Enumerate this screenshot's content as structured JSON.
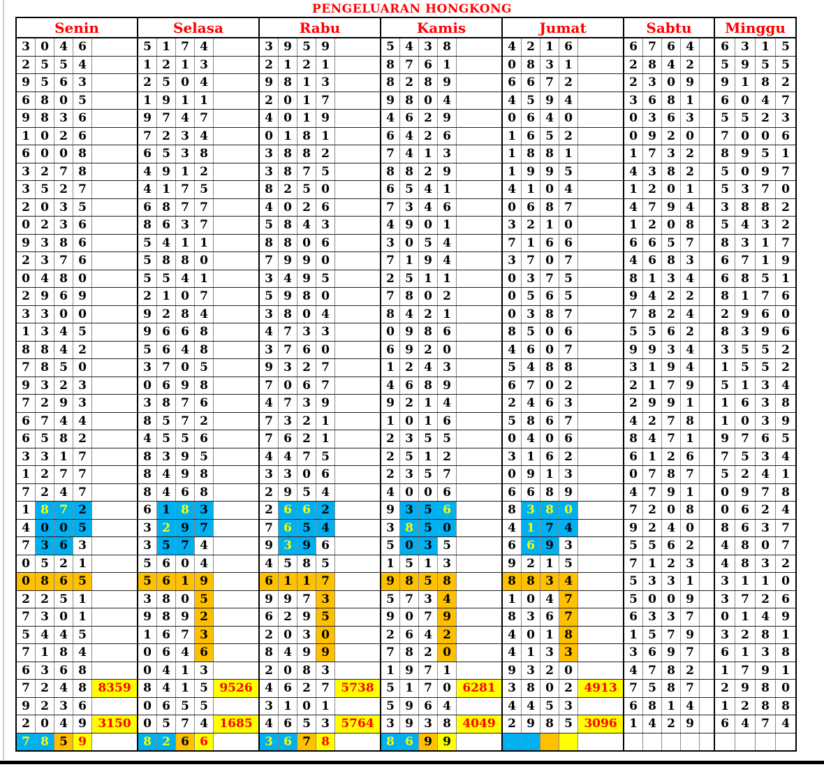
{
  "title": "PENGELUARAN HONGKONG",
  "colors": {
    "cyan": "#00B0F0",
    "orange": "#FFC000",
    "yellow": "#FFFF00",
    "red": "#FF0000",
    "digit_black": "#000000",
    "header_red": "#FF0000"
  },
  "mark_codes": {
    ".": "plain white cell, black digit",
    "c": "cyan background, black digit",
    "C": "cyan background, yellow digit",
    "o": "orange background, black digit",
    "y": "yellow background, red digit",
    "Y": "yellow background, black digit"
  },
  "table": {
    "row_count": 40,
    "days": [
      {
        "name": "Senin",
        "special_col": "wide",
        "draws": [
          "3046",
          "2554",
          "9563",
          "6805",
          "9836",
          "1026",
          "6008",
          "3278",
          "3527",
          "2035",
          "0236",
          "9386",
          "2376",
          "0480",
          "2969",
          "3300",
          "1345",
          "8842",
          "7850",
          "9323",
          "7293",
          "6744",
          "6582",
          "3317",
          "1277",
          "7247",
          "1872",
          "4005",
          "7363",
          "0521",
          "0865",
          "2251",
          "7301",
          "5445",
          "7184",
          "6368",
          "7248",
          "9236",
          "2049",
          "7859"
        ],
        "marks": {
          "27": ".CCc",
          "28": ".ccc",
          "29": ".cc.",
          "31": "oooo",
          "40": "CCoy"
        },
        "specials": {
          "37": "8359",
          "39": "3150"
        }
      },
      {
        "name": "Selasa",
        "special_col": "wide",
        "draws": [
          "5174",
          "1213",
          "2504",
          "1911",
          "9747",
          "7234",
          "6538",
          "4912",
          "4175",
          "6877",
          "8637",
          "5411",
          "5880",
          "5541",
          "2107",
          "9284",
          "9668",
          "5648",
          "3705",
          "0698",
          "3876",
          "8572",
          "4556",
          "8395",
          "8498",
          "8468",
          "6183",
          "3297",
          "3574",
          "5604",
          "5619",
          "3805",
          "9892",
          "1673",
          "0646",
          "0413",
          "8415",
          "0655",
          "0574",
          "8266"
        ],
        "marks": {
          "27": ".cCc",
          "28": ".Ccc",
          "29": ".cc.",
          "31": "oooo",
          "32": "...o",
          "33": "...o",
          "34": "...o",
          "35": "...o",
          "40": "CCoy"
        },
        "specials": {
          "37": "9526",
          "39": "1685"
        }
      },
      {
        "name": "Rabu",
        "special_col": "wide",
        "draws": [
          "3959",
          "2121",
          "9813",
          "2017",
          "4019",
          "0181",
          "3882",
          "3875",
          "8250",
          "4026",
          "5843",
          "8806",
          "7990",
          "3495",
          "5980",
          "3804",
          "4733",
          "3760",
          "9327",
          "7067",
          "4739",
          "7321",
          "7621",
          "4475",
          "3306",
          "2954",
          "2662",
          "7654",
          "9396",
          "4585",
          "6117",
          "9973",
          "6295",
          "2030",
          "8499",
          "2083",
          "4627",
          "3101",
          "4653",
          "3678"
        ],
        "marks": {
          "27": ".CCc",
          "28": ".Ccc",
          "29": ".Cc.",
          "31": "oooo",
          "32": "...o",
          "33": "...o",
          "34": "...o",
          "35": "...o",
          "40": "CCoy"
        },
        "specials": {
          "37": "5738",
          "39": "5764"
        }
      },
      {
        "name": "Kamis",
        "special_col": "wide",
        "draws": [
          "5438",
          "8761",
          "8289",
          "9804",
          "4629",
          "6426",
          "7413",
          "8829",
          "6541",
          "7346",
          "4901",
          "3054",
          "7194",
          "2511",
          "7802",
          "8421",
          "0986",
          "6920",
          "1243",
          "4689",
          "9214",
          "1016",
          "2355",
          "2512",
          "2357",
          "4006",
          "9356",
          "3850",
          "5035",
          "1513",
          "9858",
          "5734",
          "9079",
          "2642",
          "7820",
          "1971",
          "5170",
          "5964",
          "3938",
          "8699"
        ],
        "marks": {
          "27": ".ccC",
          "28": ".Ccc",
          "29": ".cc.",
          "31": "oooo",
          "32": "...o",
          "33": "...o",
          "34": "...o",
          "35": "...o",
          "40": "CCoY"
        },
        "specials": {
          "37": "6281",
          "39": "4049"
        }
      },
      {
        "name": "Jumat",
        "special_col": "wide",
        "draws": [
          "4216",
          "0831",
          "6672",
          "4594",
          "0640",
          "1652",
          "1881",
          "1995",
          "4104",
          "0687",
          "3210",
          "7166",
          "3707",
          "0375",
          "0565",
          "0387",
          "8506",
          "4607",
          "5488",
          "6702",
          "2463",
          "5867",
          "0406",
          "3162",
          "0913",
          "6689",
          "8380",
          "4174",
          "6693",
          "9215",
          "8834",
          "1047",
          "8367",
          "4018",
          "4133",
          "9320",
          "3802",
          "4453",
          "2985",
          ""
        ],
        "marks": {
          "27": ".CCC",
          "28": ".Ccc",
          "29": ".Cc.",
          "31": "oooo",
          "32": "...o",
          "33": "...o",
          "34": "...o",
          "35": "...o",
          "40": "CCoy"
        },
        "specials": {
          "37": "4913",
          "39": "3096"
        }
      },
      {
        "name": "Sabtu",
        "special_col": "narrow",
        "draws": [
          "6764",
          "2842",
          "2309",
          "3681",
          "0363",
          "0920",
          "1732",
          "4382",
          "1201",
          "4794",
          "1208",
          "6657",
          "4683",
          "8134",
          "9422",
          "7824",
          "5562",
          "9934",
          "3194",
          "2179",
          "2991",
          "4278",
          "8471",
          "6126",
          "0787",
          "4791",
          "7208",
          "9240",
          "5562",
          "7123",
          "5331",
          "5009",
          "6337",
          "1579",
          "3697",
          "4782",
          "7587",
          "6814",
          "1429",
          ""
        ],
        "marks": {},
        "specials": {}
      },
      {
        "name": "Minggu",
        "special_col": "none",
        "draws": [
          "6315",
          "5955",
          "9182",
          "6047",
          "5523",
          "7006",
          "8951",
          "5097",
          "5370",
          "3882",
          "5432",
          "8317",
          "6719",
          "6851",
          "8176",
          "2960",
          "8396",
          "3552",
          "1552",
          "5134",
          "1638",
          "1039",
          "9765",
          "7534",
          "5241",
          "0978",
          "0624",
          "8637",
          "4807",
          "4832",
          "3110",
          "3726",
          "0149",
          "3281",
          "6138",
          "1791",
          "2980",
          "1288",
          "6474",
          ""
        ],
        "marks": {},
        "specials": {}
      }
    ]
  }
}
